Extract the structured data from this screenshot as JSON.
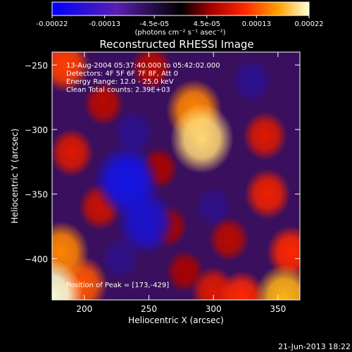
{
  "chart_data": {
    "type": "heatmap",
    "title": "Reconstructed RHESSI Image",
    "xlabel": "Heliocentric X (arcsec)",
    "ylabel": "Heliocentric Y (arcsec)",
    "xlim": [
      175,
      367
    ],
    "ylim": [
      -432,
      -240
    ],
    "xticks": [
      200,
      250,
      300,
      350
    ],
    "yticks": [
      -250,
      -300,
      -350,
      -400
    ],
    "colorbar": {
      "ticks": [
        "-0.00022",
        "-0.00013",
        "-4.5e-05",
        "4.5e-05",
        "0.00013",
        "0.00022"
      ],
      "unit": "(photons cm⁻² s⁻¹ asec⁻²)",
      "range": [
        -0.00022,
        0.00022
      ]
    },
    "annotations": [
      "13-Aug-2004 05:37:40.000 to 05:42:02.000",
      "Detectors: 4F 5F 6F 7F 8F, Att 0",
      "Energy Range: 12.0 - 25.0 keV",
      "Clean     Total counts: 2.39E+03"
    ],
    "peak_label": "Position of Peak = [173,-429]",
    "sources": [
      {
        "x": 173,
        "y": -429,
        "value": 0.00022
      },
      {
        "x": 291,
        "y": -307,
        "value": 0.0002
      },
      {
        "x": 285,
        "y": -285,
        "value": 0.00016
      },
      {
        "x": 185,
        "y": -250,
        "value": 0.00013
      },
      {
        "x": 182,
        "y": -395,
        "value": 0.00016
      },
      {
        "x": 198,
        "y": -420,
        "value": 0.00014
      },
      {
        "x": 190,
        "y": -318,
        "value": 0.0001
      },
      {
        "x": 355,
        "y": -430,
        "value": 0.00018
      },
      {
        "x": 322,
        "y": -430,
        "value": 0.00012
      },
      {
        "x": 300,
        "y": -425,
        "value": 0.0001
      },
      {
        "x": 360,
        "y": -395,
        "value": 0.00012
      },
      {
        "x": 342,
        "y": -350,
        "value": 0.00011
      },
      {
        "x": 340,
        "y": -305,
        "value": 0.0001
      },
      {
        "x": 252,
        "y": -252,
        "value": 8e-05
      },
      {
        "x": 215,
        "y": -280,
        "value": 8e-05
      },
      {
        "x": 212,
        "y": -360,
        "value": 9e-05
      },
      {
        "x": 258,
        "y": -330,
        "value": 7e-05
      },
      {
        "x": 265,
        "y": -375,
        "value": 7e-05
      },
      {
        "x": 312,
        "y": -385,
        "value": 8e-05
      },
      {
        "x": 278,
        "y": -410,
        "value": 7e-05
      },
      {
        "x": 233,
        "y": -340,
        "value": -0.00022
      },
      {
        "x": 248,
        "y": -372,
        "value": -0.00018
      },
      {
        "x": 238,
        "y": -302,
        "value": -8e-05
      },
      {
        "x": 300,
        "y": -360,
        "value": -7e-05
      },
      {
        "x": 330,
        "y": -262,
        "value": -8e-05
      },
      {
        "x": 228,
        "y": -400,
        "value": -7e-05
      }
    ],
    "timestamp": "21-Jun-2013 18:22"
  }
}
